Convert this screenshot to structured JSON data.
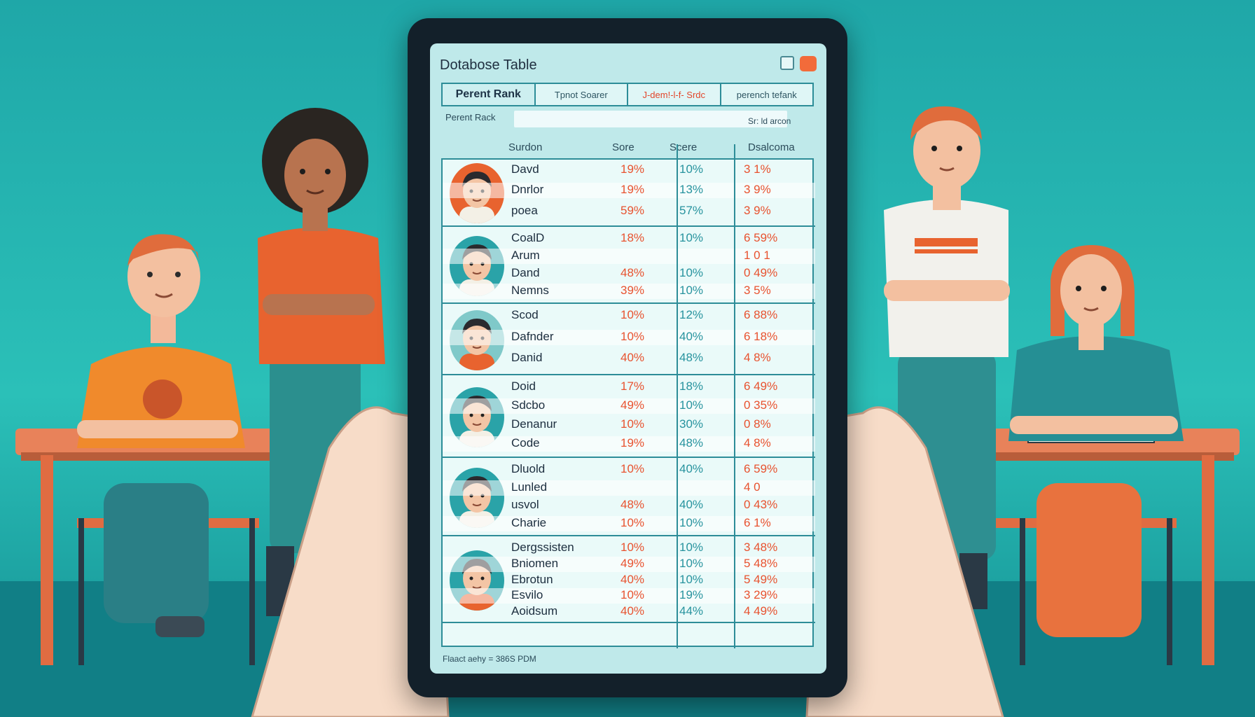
{
  "screen": {
    "title": "Dotabose Table",
    "tabs": [
      "Perent Rank",
      "Tpnot Soarer",
      "J-dem!-l-f- Srdc",
      "perench tefank"
    ],
    "sublabel": "Perent Rack",
    "search_text": "Sr: ld arcon",
    "headers": [
      "Surdon",
      "Sore",
      "Scere",
      "Dsalcoma"
    ],
    "footer": "Flaact aehy = 386S PDM",
    "groups": [
      {
        "rows": [
          [
            "Davd",
            "19%",
            "10%",
            "3 1%"
          ],
          [
            "Dnrlor",
            "19%",
            "13%",
            "3 9%"
          ],
          [
            "poea",
            "59%",
            "57%",
            "3 9%"
          ]
        ]
      },
      {
        "rows": [
          [
            "CoalD",
            "18%",
            "10%",
            "6 59%"
          ],
          [
            "Arum",
            "",
            "",
            "1 0 1"
          ],
          [
            "Dand",
            "48%",
            "10%",
            "0 49%"
          ],
          [
            "Nemns",
            "39%",
            "10%",
            "3 5%"
          ]
        ]
      },
      {
        "rows": [
          [
            "Scod",
            "10%",
            "12%",
            "6 88%"
          ],
          [
            "Dafnder",
            "10%",
            "40%",
            "6 18%"
          ],
          [
            "Danid",
            "40%",
            "48%",
            "4 8%"
          ]
        ]
      },
      {
        "rows": [
          [
            "Doid",
            "17%",
            "18%",
            "6 49%"
          ],
          [
            "Sdcbo",
            "49%",
            "10%",
            "0 35%"
          ],
          [
            "Denanur",
            "10%",
            "30%",
            "0 8%"
          ],
          [
            "Code",
            "19%",
            "48%",
            "4 8%"
          ]
        ]
      },
      {
        "rows": [
          [
            "Dluold",
            "10%",
            "40%",
            "6 59%"
          ],
          [
            "Lunled",
            "",
            "",
            "4 0"
          ],
          [
            "usvol",
            "48%",
            "40%",
            "0 43%"
          ],
          [
            "Charie",
            "10%",
            "10%",
            "6 1%"
          ]
        ]
      },
      {
        "rows": [
          [
            "Dergssisten",
            "10%",
            "10%",
            "3 48%"
          ],
          [
            "Bniomen",
            "49%",
            "10%",
            "5 48%"
          ],
          [
            "Ebrotun",
            "40%",
            "10%",
            "5 49%"
          ],
          [
            "Esvilo",
            "10%",
            "19%",
            "3 29%"
          ],
          [
            "Aoidsum",
            "40%",
            "44%",
            "4 49%"
          ]
        ]
      }
    ]
  },
  "colors": {
    "background": "#23b2b0",
    "accent": "#2d8d98",
    "red": "#e8522f",
    "teal": "#27939e",
    "orange": "#f07a3c"
  }
}
